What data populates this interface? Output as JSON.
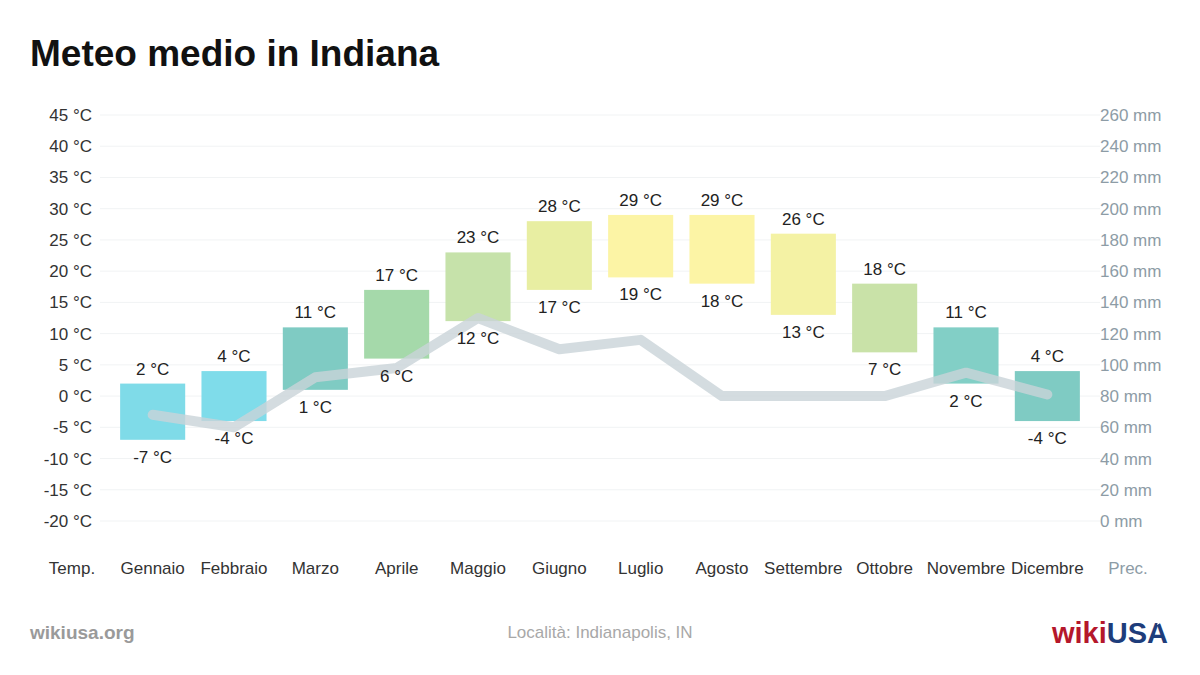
{
  "chart_data": {
    "type": "bar",
    "title": "Meteo medio in Indiana",
    "categories": [
      "Gennaio",
      "Febbraio",
      "Marzo",
      "Aprile",
      "Maggio",
      "Giugno",
      "Luglio",
      "Agosto",
      "Settembre",
      "Ottobre",
      "Novembre",
      "Dicembre"
    ],
    "ylabel": "Temp.",
    "y2label": "Prec.",
    "ylim": [
      -20,
      45
    ],
    "yticks": [
      {
        "value": -20,
        "label": "-20 °C"
      },
      {
        "value": -15,
        "label": "-15 °C"
      },
      {
        "value": -10,
        "label": "-10 °C"
      },
      {
        "value": -5,
        "label": "-5 °C"
      },
      {
        "value": 0,
        "label": "0 °C"
      },
      {
        "value": 5,
        "label": "5 °C"
      },
      {
        "value": 10,
        "label": "10 °C"
      },
      {
        "value": 15,
        "label": "15 °C"
      },
      {
        "value": 20,
        "label": "20 °C"
      },
      {
        "value": 25,
        "label": "25 °C"
      },
      {
        "value": 30,
        "label": "30 °C"
      },
      {
        "value": 35,
        "label": "35 °C"
      },
      {
        "value": 40,
        "label": "40 °C"
      },
      {
        "value": 45,
        "label": "45 °C"
      }
    ],
    "y2lim": [
      0,
      260
    ],
    "y2ticks": [
      {
        "value": 0,
        "label": "0 mm"
      },
      {
        "value": 20,
        "label": "20 mm"
      },
      {
        "value": 40,
        "label": "40 mm"
      },
      {
        "value": 60,
        "label": "60 mm"
      },
      {
        "value": 80,
        "label": "80 mm"
      },
      {
        "value": 100,
        "label": "100 mm"
      },
      {
        "value": 120,
        "label": "120 mm"
      },
      {
        "value": 140,
        "label": "140 mm"
      },
      {
        "value": 160,
        "label": "160 mm"
      },
      {
        "value": 180,
        "label": "180 mm"
      },
      {
        "value": 200,
        "label": "200 mm"
      },
      {
        "value": 220,
        "label": "220 mm"
      },
      {
        "value": 240,
        "label": "240 mm"
      },
      {
        "value": 260,
        "label": "260 mm"
      }
    ],
    "grid": true,
    "data_labels": true,
    "series": [
      {
        "type": "bar",
        "values": [
          [
            -7,
            2
          ],
          [
            -4,
            4
          ],
          [
            1,
            11
          ],
          [
            6,
            17
          ],
          [
            12,
            23
          ],
          [
            17,
            28
          ],
          [
            19,
            29
          ],
          [
            18,
            29
          ],
          [
            13,
            26
          ],
          [
            7,
            18
          ],
          [
            2,
            11
          ],
          [
            -4,
            4
          ]
        ],
        "value_labels": [
          [
            "-7 °C",
            "2 °C"
          ],
          [
            "-4 °C",
            "4 °C"
          ],
          [
            "1 °C",
            "11 °C"
          ],
          [
            "6 °C",
            "17 °C"
          ],
          [
            "12 °C",
            "23 °C"
          ],
          [
            "17 °C",
            "28 °C"
          ],
          [
            "19 °C",
            "29 °C"
          ],
          [
            "18 °C",
            "29 °C"
          ],
          [
            "13 °C",
            "26 °C"
          ],
          [
            "7 °C",
            "18 °C"
          ],
          [
            "2 °C",
            "11 °C"
          ],
          [
            "-4 °C",
            "4 °C"
          ]
        ],
        "colors": [
          "#7fdbe8",
          "#7fdcea",
          "#7fcbc3",
          "#a5d9aa",
          "#c6e2aa",
          "#e8eea2",
          "#fcf4a5",
          "#fcf4a5",
          "#f4f2a4",
          "#c9e2a8",
          "#82cfc6",
          "#7fcbc3"
        ]
      },
      {
        "type": "line",
        "axis": "y2",
        "color": "#c9d3d8",
        "values": [
          68,
          60,
          92,
          98,
          130,
          110,
          116,
          80,
          80,
          80,
          95,
          81
        ]
      }
    ],
    "source": "wikiusa.org",
    "location": "Località: Indianapolis, IN",
    "logo": [
      "wiki",
      "USA"
    ]
  }
}
